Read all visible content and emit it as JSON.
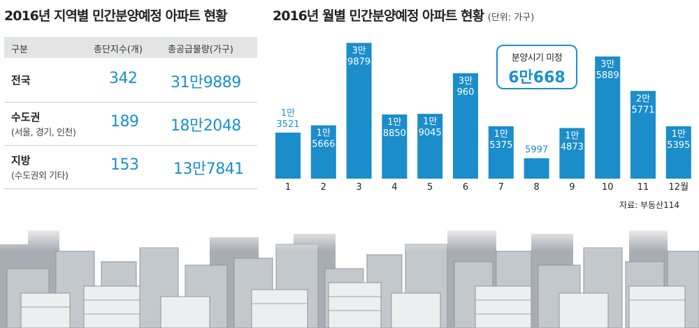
{
  "left_title": "2016년 지역별 민간분양예정 아파트 현황",
  "table": {
    "headers": [
      "구분",
      "총단지수(개)",
      "총공급물량(가구)"
    ],
    "rows": [
      {
        "label": "전국",
        "sub": "",
        "complexes": "342",
        "units": "31만9889"
      },
      {
        "label": "수도권",
        "sub": "(서울, 경기, 인천)",
        "complexes": "189",
        "units": "18만2048"
      },
      {
        "label": "지방",
        "sub": "(수도권외 기타)",
        "complexes": "153",
        "units": "13만7841"
      }
    ]
  },
  "right_title": "2016년 월별 민간분양예정 아파트 현황",
  "right_title_unit": "(단위: 가구)",
  "callout": {
    "label": "분양시기 미정",
    "value": "6만668"
  },
  "source": "자료: 부동산114",
  "colors": {
    "bar": "#1b8dcb",
    "accent": "#1a8fcf",
    "header_bg": "#e3e4e6"
  },
  "chart_data": {
    "type": "bar",
    "title": "2016년 월별 민간분양예정 아파트 현황",
    "unit": "(단위: 가구)",
    "categories": [
      "1",
      "2",
      "3",
      "4",
      "5",
      "6",
      "7",
      "8",
      "9",
      "10",
      "11",
      "12월"
    ],
    "values": [
      13521,
      15666,
      39879,
      18850,
      19045,
      30960,
      15375,
      5997,
      14873,
      35889,
      25771,
      15395
    ],
    "labels": [
      [
        "1만",
        "3521"
      ],
      [
        "1만",
        "5666"
      ],
      [
        "3만",
        "9879"
      ],
      [
        "1만",
        "8850"
      ],
      [
        "1만",
        "9045"
      ],
      [
        "3만",
        "960"
      ],
      [
        "1만",
        "5375"
      ],
      [
        "",
        "5997"
      ],
      [
        "1만",
        "4873"
      ],
      [
        "3만",
        "5889"
      ],
      [
        "2만",
        "5771"
      ],
      [
        "1만",
        "5395"
      ]
    ],
    "ylim": [
      0,
      41000
    ],
    "grid": false,
    "legend": "none"
  }
}
